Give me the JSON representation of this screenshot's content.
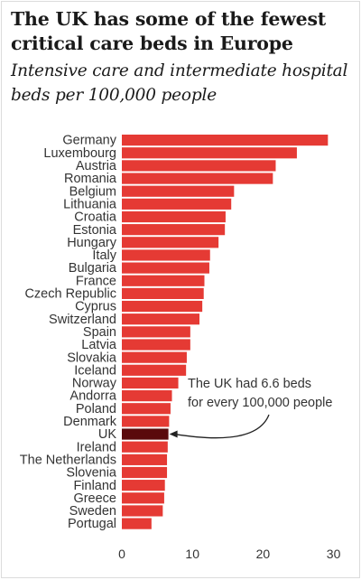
{
  "chart_data": {
    "type": "bar",
    "orientation": "horizontal",
    "title": "The UK has some of the fewest critical care beds in Europe",
    "subtitle": "Intensive care and intermediate hospital beds per 100,000 people",
    "categories": [
      "Germany",
      "Luxembourg",
      "Austria",
      "Romania",
      "Belgium",
      "Lithuania",
      "Croatia",
      "Estonia",
      "Hungary",
      "Italy",
      "Bulgaria",
      "France",
      "Czech Republic",
      "Cyprus",
      "Switzerland",
      "Spain",
      "Latvia",
      "Slovakia",
      "Iceland",
      "Norway",
      "Andorra",
      "Poland",
      "Denmark",
      "UK",
      "Ireland",
      "The Netherlands",
      "Slovenia",
      "Finland",
      "Greece",
      "Sweden",
      "Portugal"
    ],
    "values": [
      29.2,
      24.8,
      21.8,
      21.4,
      15.9,
      15.5,
      14.7,
      14.6,
      13.7,
      12.5,
      12.4,
      11.7,
      11.6,
      11.4,
      11.0,
      9.7,
      9.7,
      9.2,
      9.1,
      8.0,
      7.1,
      6.9,
      6.7,
      6.6,
      6.5,
      6.4,
      6.4,
      6.1,
      6.0,
      5.8,
      4.2
    ],
    "highlight": "UK",
    "xlim": [
      0,
      32
    ],
    "xticks": [
      0,
      10,
      20,
      30
    ],
    "grid": false,
    "annotation": {
      "lines": [
        "The UK had 6.6 beds",
        "for every 100,000 people"
      ],
      "target": "UK"
    },
    "colors": {
      "bar": "#e53a34",
      "highlight": "#5a0a0c",
      "text": "#333333"
    }
  }
}
